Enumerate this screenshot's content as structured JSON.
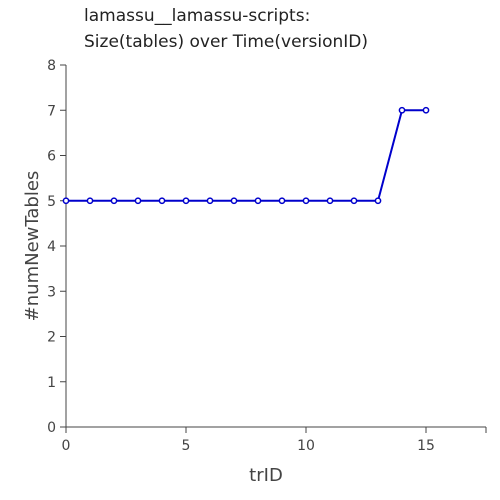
{
  "chart_data": {
    "type": "line",
    "title_lines": [
      "lamassu__lamassu-scripts:",
      "Size(tables) over Time(versionID)"
    ],
    "xlabel": "trID",
    "ylabel": "#numNewTables",
    "xlim": [
      0,
      17.5
    ],
    "ylim": [
      0,
      8
    ],
    "xticks": [
      0,
      5,
      10,
      15
    ],
    "yticks": [
      0,
      1,
      2,
      3,
      4,
      5,
      6,
      7,
      8
    ],
    "grid": false,
    "series": [
      {
        "color": "#0000cc",
        "x": [
          0,
          1,
          2,
          3,
          4,
          5,
          6,
          7,
          8,
          9,
          10,
          11,
          12,
          13,
          14,
          15
        ],
        "y": [
          5,
          5,
          5,
          5,
          5,
          5,
          5,
          5,
          5,
          5,
          5,
          5,
          5,
          5,
          7,
          7
        ]
      }
    ]
  }
}
